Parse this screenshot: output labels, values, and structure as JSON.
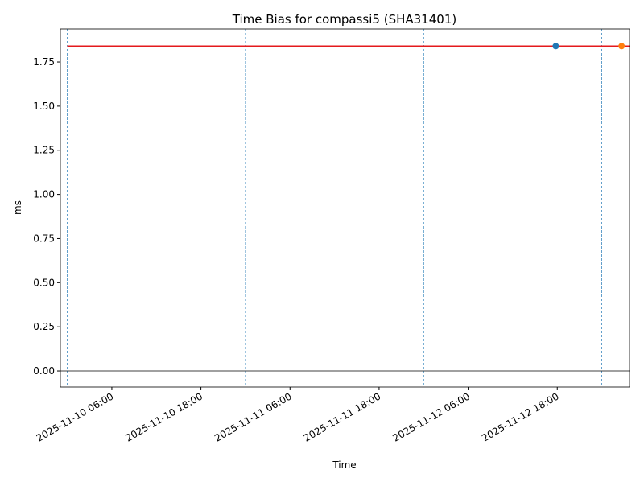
{
  "chart_data": {
    "type": "scatter",
    "title": "Time Bias for compassi5 (SHA31401)",
    "xlabel": "Time",
    "ylabel": "ms",
    "xlim": [
      "2025-11-09 23:04",
      "2025-11-13 03:44"
    ],
    "xticks": [
      "2025-11-10 06:00",
      "2025-11-10 18:00",
      "2025-11-11 06:00",
      "2025-11-11 18:00",
      "2025-11-12 06:00",
      "2025-11-12 18:00"
    ],
    "ylim": [
      -0.091,
      1.937
    ],
    "yticks": [
      {
        "value": 0,
        "label": "0.00"
      },
      {
        "value": 0.25,
        "label": "0.25"
      },
      {
        "value": 0.5,
        "label": "0.50"
      },
      {
        "value": 0.75,
        "label": "0.75"
      },
      {
        "value": 1,
        "label": "1.00"
      },
      {
        "value": 1.25,
        "label": "1.25"
      },
      {
        "value": 1.5,
        "label": "1.50"
      },
      {
        "value": 1.75,
        "label": "1.75"
      }
    ],
    "series": [
      {
        "color": "#1f77b4",
        "x": [
          "2025-11-12 17:48"
        ],
        "values": [
          1.84
        ]
      },
      {
        "color": "#ff7f0e",
        "x": [
          "2025-11-13 02:40"
        ],
        "values": [
          1.84
        ]
      }
    ],
    "hlines": [
      {
        "y": 1.84,
        "xmin": "2025-11-10 00:00",
        "xmax": "2025-11-13 03:44",
        "color": "#e41a1c"
      },
      {
        "y": 0,
        "xmin": "2025-11-09 23:04",
        "xmax": "2025-11-13 03:44",
        "color": "#000000"
      }
    ],
    "vlines": {
      "x": [
        "2025-11-10 00:00",
        "2025-11-11 00:00",
        "2025-11-12 00:00",
        "2025-11-13 00:00"
      ],
      "color": "#1f77b4"
    }
  }
}
